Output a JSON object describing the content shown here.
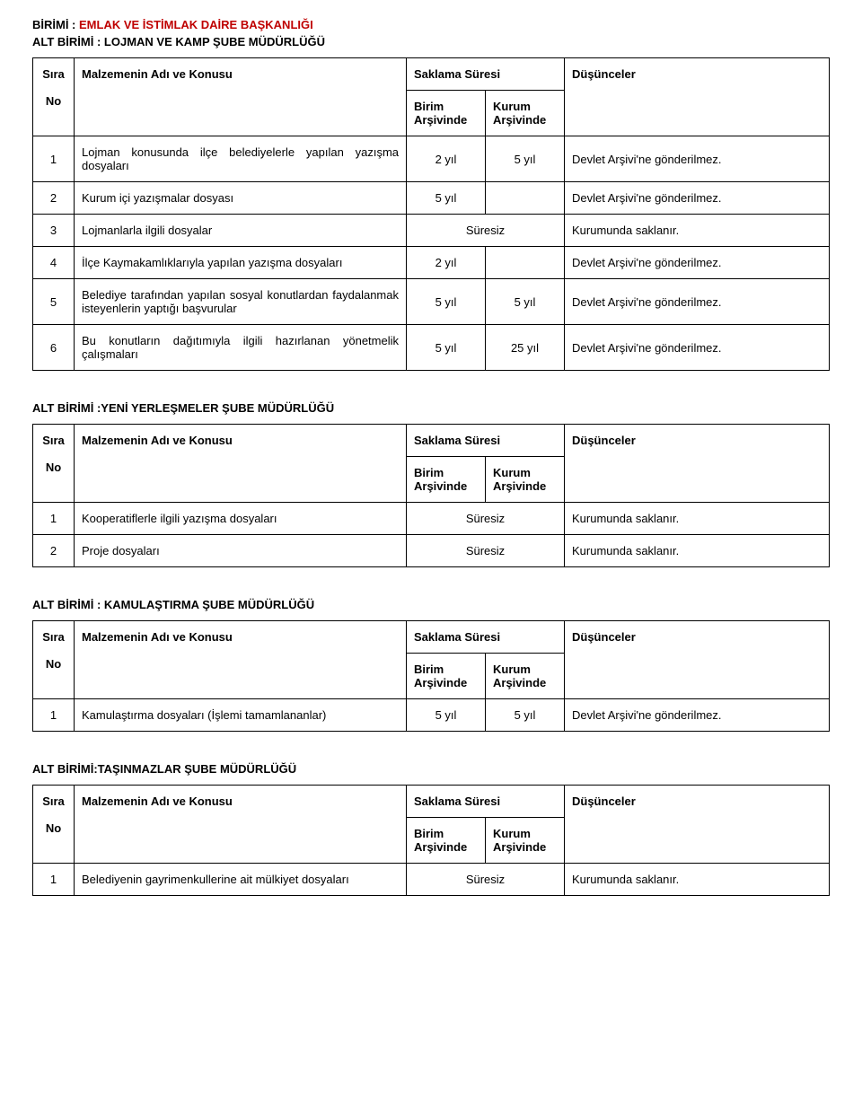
{
  "header": {
    "birimi_label": "BİRİMİ : ",
    "birimi_value": "EMLAK VE İSTİMLAK DAİRE BAŞKANLIĞI",
    "altbirimi_label_prefix": "ALT BİRİMİ : ",
    "altbirimi_value": "LOJMAN VE KAMP ŞUBE MÜDÜRLÜĞÜ"
  },
  "columns": {
    "sira": "Sıra",
    "no": "No",
    "malzeme": "Malzemenin Adı ve Konusu",
    "saklama": "Saklama Süresi",
    "birim": "Birim",
    "kurum": "Kurum",
    "arsivinde": "Arşivinde",
    "dusunceler": "Düşünceler"
  },
  "table1": {
    "rows": [
      {
        "no": "1",
        "desc": "Lojman konusunda ilçe belediyelerle yapılan yazışma dosyaları",
        "birim": "2 yıl",
        "kurum": "5 yıl",
        "dus": "Devlet Arşivi'ne gönderilmez."
      },
      {
        "no": "2",
        "desc": "Kurum içi yazışmalar dosyası",
        "birim": "5 yıl",
        "kurum": "",
        "dus": "Devlet Arşivi'ne gönderilmez."
      },
      {
        "no": "3",
        "desc": "Lojmanlarla ilgili dosyalar",
        "merged": "Süresiz",
        "dus": "Kurumunda saklanır."
      },
      {
        "no": "4",
        "desc": "İlçe Kaymakamlıklarıyla yapılan yazışma dosyaları",
        "birim": "2 yıl",
        "kurum": "",
        "dus": "Devlet Arşivi'ne gönderilmez."
      },
      {
        "no": "5",
        "desc": "Belediye tarafından yapılan sosyal konutlardan faydalanmak isteyenlerin yaptığı başvurular",
        "birim": "5 yıl",
        "kurum": "5 yıl",
        "dus": "Devlet Arşivi'ne gönderilmez."
      },
      {
        "no": "6",
        "desc": "Bu konutların dağıtımıyla ilgili hazırlanan yönetmelik çalışmaları",
        "birim": "5 yıl",
        "kurum": "25 yıl",
        "dus": "Devlet Arşivi'ne gönderilmez."
      }
    ]
  },
  "section2": {
    "title": "ALT BİRİMİ :YENİ YERLEŞMELER ŞUBE MÜDÜRLÜĞÜ",
    "rows": [
      {
        "no": "1",
        "desc": "Kooperatiflerle ilgili yazışma dosyaları",
        "merged": "Süresiz",
        "dus": "Kurumunda saklanır."
      },
      {
        "no": "2",
        "desc": "Proje dosyaları",
        "merged": "Süresiz",
        "dus": "Kurumunda saklanır."
      }
    ]
  },
  "section3": {
    "title": "ALT BİRİMİ : KAMULAŞTIRMA ŞUBE MÜDÜRLÜĞÜ",
    "rows": [
      {
        "no": "1",
        "desc": "Kamulaştırma dosyaları (İşlemi tamamlananlar)",
        "birim": "5 yıl",
        "kurum": "5 yıl",
        "dus": "Devlet Arşivi'ne gönderilmez."
      }
    ]
  },
  "section4": {
    "title": "ALT BİRİMİ:TAŞINMAZLAR ŞUBE MÜDÜRLÜĞÜ",
    "rows": [
      {
        "no": "1",
        "desc": "Belediyenin gayrimenkullerine ait mülkiyet dosyaları",
        "merged": "Süresiz",
        "dus": "Kurumunda saklanır."
      }
    ]
  }
}
